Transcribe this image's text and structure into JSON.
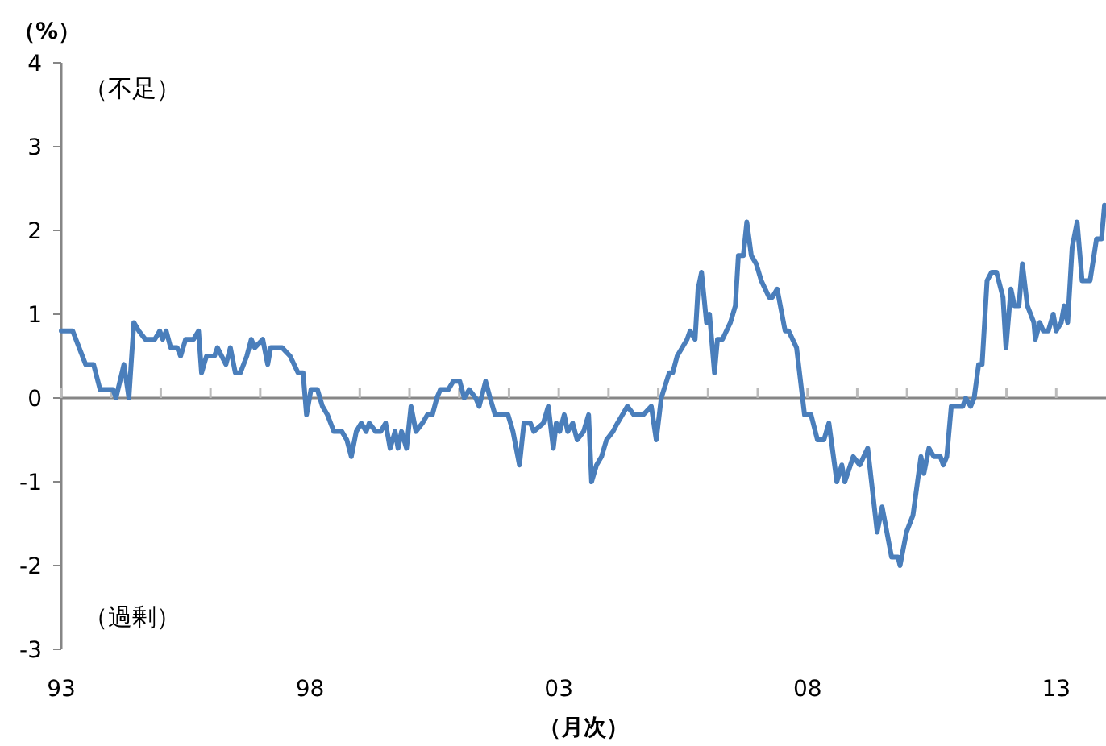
{
  "chart_data": {
    "type": "line",
    "ylabel": "（%）",
    "xlabel": "（月次）",
    "annotations": [
      "（不足）",
      "（過剰）"
    ],
    "xlim": [
      1993,
      2014
    ],
    "ylim": [
      -3,
      4
    ],
    "yticks": [
      4,
      3,
      2,
      1,
      0,
      -1,
      -2,
      -3
    ],
    "xticks": [
      {
        "value": 1993,
        "label": "93"
      },
      {
        "value": 1994,
        "label": null
      },
      {
        "value": 1995,
        "label": null
      },
      {
        "value": 1996,
        "label": null
      },
      {
        "value": 1997,
        "label": null
      },
      {
        "value": 1998,
        "label": "98"
      },
      {
        "value": 1999,
        "label": null
      },
      {
        "value": 2000,
        "label": null
      },
      {
        "value": 2001,
        "label": null
      },
      {
        "value": 2002,
        "label": null
      },
      {
        "value": 2003,
        "label": "03"
      },
      {
        "value": 2004,
        "label": null
      },
      {
        "value": 2005,
        "label": null
      },
      {
        "value": 2006,
        "label": null
      },
      {
        "value": 2007,
        "label": null
      },
      {
        "value": 2008,
        "label": "08"
      },
      {
        "value": 2009,
        "label": null
      },
      {
        "value": 2010,
        "label": null
      },
      {
        "value": 2011,
        "label": null
      },
      {
        "value": 2012,
        "label": null
      },
      {
        "value": 2013,
        "label": "13"
      }
    ],
    "marker": "none",
    "line_style": "solid",
    "series": [
      {
        "color": "#4a7ebb",
        "x": [
          1993.0,
          1993.23,
          1993.49,
          1993.65,
          1993.78,
          1994.04,
          1994.1,
          1994.26,
          1994.36,
          1994.46,
          1994.56,
          1994.69,
          1994.88,
          1994.98,
          1995.04,
          1995.11,
          1995.2,
          1995.33,
          1995.4,
          1995.5,
          1995.66,
          1995.76,
          1995.82,
          1995.92,
          1996.08,
          1996.14,
          1996.31,
          1996.4,
          1996.5,
          1996.6,
          1996.73,
          1996.82,
          1996.89,
          1997.05,
          1997.15,
          1997.21,
          1997.44,
          1997.6,
          1997.76,
          1997.86,
          1997.93,
          1998.02,
          1998.15,
          1998.25,
          1998.35,
          1998.48,
          1998.64,
          1998.74,
          1998.83,
          1998.93,
          1999.03,
          1999.13,
          1999.19,
          1999.32,
          1999.42,
          1999.52,
          1999.61,
          1999.71,
          1999.77,
          1999.84,
          1999.94,
          2000.03,
          2000.13,
          2000.26,
          2000.36,
          2000.46,
          2000.55,
          2000.62,
          2000.71,
          2000.78,
          2000.88,
          2001.01,
          2001.1,
          2001.2,
          2001.33,
          2001.4,
          2001.53,
          2001.62,
          2001.72,
          2001.88,
          2001.98,
          2002.08,
          2002.21,
          2002.3,
          2002.43,
          2002.5,
          2002.69,
          2002.79,
          2002.89,
          2002.95,
          2003.02,
          2003.11,
          2003.18,
          2003.28,
          2003.37,
          2003.5,
          2003.6,
          2003.66,
          2003.76,
          2003.86,
          2003.96,
          2004.09,
          2004.18,
          2004.28,
          2004.38,
          2004.51,
          2004.7,
          2004.86,
          2004.96,
          2005.06,
          2005.22,
          2005.29,
          2005.38,
          2005.58,
          2005.64,
          2005.74,
          2005.8,
          2005.87,
          2005.97,
          2006.03,
          2006.13,
          2006.19,
          2006.29,
          2006.45,
          2006.55,
          2006.61,
          2006.71,
          2006.78,
          2006.87,
          2006.97,
          2007.07,
          2007.23,
          2007.29,
          2007.39,
          2007.55,
          2007.62,
          2007.78,
          2007.94,
          2008.07,
          2008.2,
          2008.33,
          2008.43,
          2008.59,
          2008.69,
          2008.75,
          2008.92,
          2009.05,
          2009.21,
          2009.4,
          2009.5,
          2009.69,
          2009.82,
          2009.86,
          2009.99,
          2010.12,
          2010.28,
          2010.34,
          2010.44,
          2010.54,
          2010.67,
          2010.73,
          2010.8,
          2010.89,
          2010.99,
          2011.12,
          2011.18,
          2011.28,
          2011.35,
          2011.44,
          2011.51,
          2011.61,
          2011.7,
          2011.8,
          2011.93,
          2011.99,
          2012.09,
          2012.16,
          2012.25,
          2012.32,
          2012.42,
          2012.55,
          2012.58,
          2012.67,
          2012.74,
          2012.84,
          2012.94,
          2013.0,
          2013.1,
          2013.16,
          2013.23,
          2013.32,
          2013.42,
          2013.52,
          2013.68,
          2013.81,
          2013.91,
          2013.97
        ],
        "values": [
          0.8,
          0.8,
          0.4,
          0.4,
          0.1,
          0.1,
          0,
          0.4,
          0,
          0.9,
          0.8,
          0.7,
          0.7,
          0.8,
          0.7,
          0.8,
          0.6,
          0.6,
          0.5,
          0.7,
          0.7,
          0.8,
          0.3,
          0.5,
          0.5,
          0.6,
          0.4,
          0.6,
          0.3,
          0.3,
          0.5,
          0.7,
          0.6,
          0.7,
          0.4,
          0.6,
          0.6,
          0.5,
          0.3,
          0.3,
          -0.2,
          0.1,
          0.1,
          -0.1,
          -0.2,
          -0.4,
          -0.4,
          -0.5,
          -0.7,
          -0.4,
          -0.3,
          -0.4,
          -0.3,
          -0.4,
          -0.4,
          -0.3,
          -0.6,
          -0.4,
          -0.6,
          -0.4,
          -0.6,
          -0.1,
          -0.4,
          -0.3,
          -0.2,
          -0.2,
          0.0,
          0.1,
          0.1,
          0.1,
          0.2,
          0.2,
          0.0,
          0.1,
          0.0,
          -0.1,
          0.2,
          0.0,
          -0.2,
          -0.2,
          -0.2,
          -0.4,
          -0.8,
          -0.3,
          -0.3,
          -0.4,
          -0.3,
          -0.1,
          -0.6,
          -0.3,
          -0.4,
          -0.2,
          -0.4,
          -0.3,
          -0.5,
          -0.4,
          -0.2,
          -1.0,
          -0.8,
          -0.7,
          -0.5,
          -0.4,
          -0.3,
          -0.2,
          -0.1,
          -0.2,
          -0.2,
          -0.1,
          -0.5,
          0.0,
          0.3,
          0.3,
          0.5,
          0.7,
          0.8,
          0.7,
          1.3,
          1.5,
          0.9,
          1.0,
          0.3,
          0.7,
          0.7,
          0.9,
          1.1,
          1.7,
          1.7,
          2.1,
          1.7,
          1.6,
          1.4,
          1.2,
          1.2,
          1.3,
          0.8,
          0.8,
          0.6,
          -0.2,
          -0.2,
          -0.5,
          -0.5,
          -0.3,
          -1.0,
          -0.8,
          -1.0,
          -0.7,
          -0.8,
          -0.6,
          -1.6,
          -1.3,
          -1.9,
          -1.9,
          -2.0,
          -1.6,
          -1.4,
          -0.7,
          -0.9,
          -0.6,
          -0.7,
          -0.7,
          -0.8,
          -0.7,
          -0.1,
          -0.1,
          -0.1,
          0.0,
          -0.1,
          0.0,
          0.4,
          0.4,
          1.4,
          1.5,
          1.5,
          1.2,
          0.6,
          1.3,
          1.1,
          1.1,
          1.6,
          1.1,
          0.9,
          0.7,
          0.9,
          0.8,
          0.8,
          1.0,
          0.8,
          0.9,
          1.1,
          0.9,
          1.8,
          2.1,
          1.4,
          1.4,
          1.9,
          1.9,
          2.3
        ]
      }
    ]
  }
}
